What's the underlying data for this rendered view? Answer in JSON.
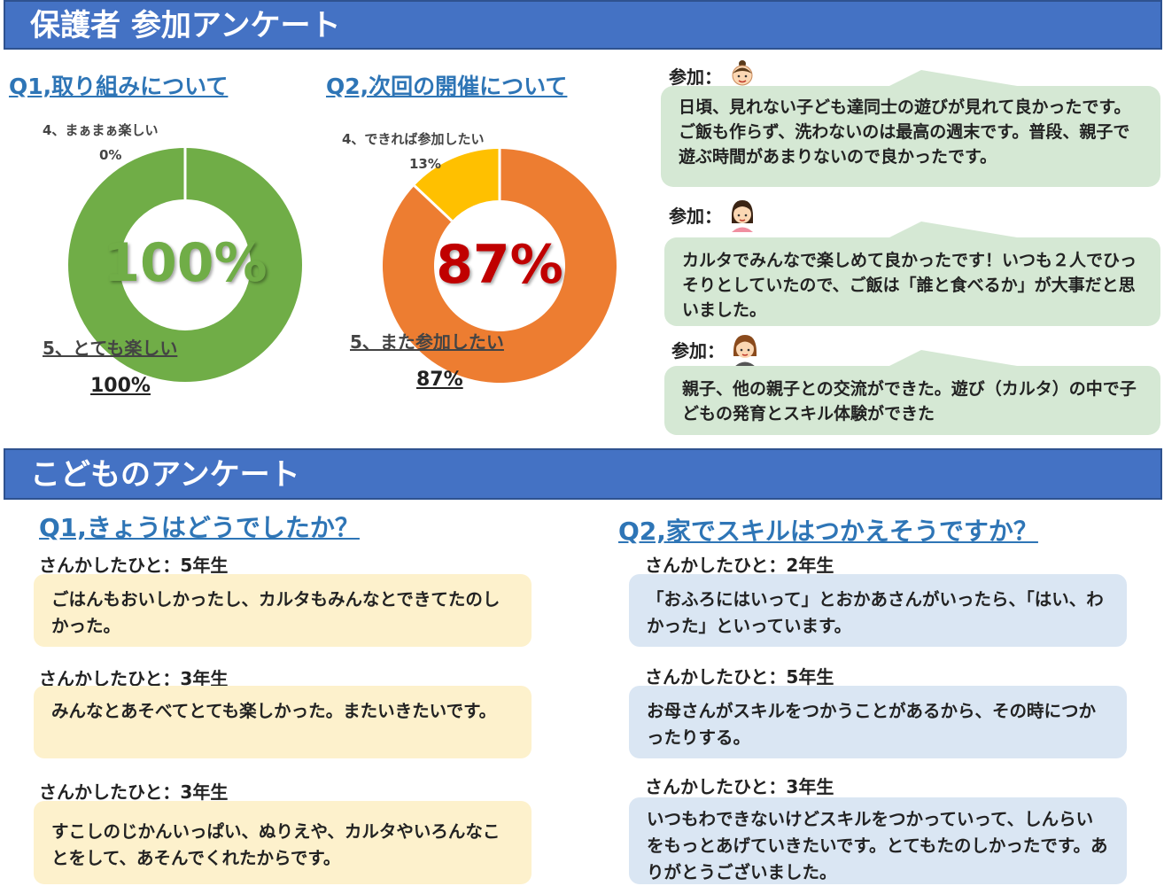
{
  "sections": {
    "parents_title": "保護者 参加アンケート",
    "kids_title": "こどものアンケート"
  },
  "parents": {
    "q1": {
      "title": "Q1,取り組みについて",
      "small_label": "4、まぁまぁ楽しい",
      "small_pct": "0%",
      "big_label": "5、とても楽しい",
      "big_pct": "100%",
      "center": "100%"
    },
    "q2": {
      "title": "Q2,次回の開催について",
      "small_label": "4、できれば参加したい",
      "small_pct": "13%",
      "big_label": "5、また参加したい",
      "big_pct": "87%",
      "center": "87%"
    },
    "comments": [
      {
        "speaker": "参加：",
        "icon": "man-face-icon",
        "text": "日頃、見れない子ども達同士の遊びが見れて良かったです。ご飯も作らず、洗わないのは最高の週末です。普段、親子で遊ぶ時間があまりないので良かったです。"
      },
      {
        "speaker": "参加：",
        "icon": "woman-face-icon",
        "text": "カルタでみんなで楽しめて良かったです！いつも２人でひっそりとしていたので、ご飯は「誰と食べるか」が大事だと思いました。"
      },
      {
        "speaker": "参加：",
        "icon": "woman-face-icon",
        "text": "親子、他の親子との交流ができた。遊び（カルタ）の中で子どもの発育とスキル体験ができた"
      }
    ]
  },
  "kids": {
    "q1": {
      "title": "Q1,きょうはどうでしたか？",
      "answers": [
        {
          "who": "さんかしたひと：5年生",
          "text": "ごはんもおいしかったし、カルタもみんなとできてたのしかった。"
        },
        {
          "who": "さんかしたひと：3年生",
          "text": "みんなとあそべてとても楽しかった。またいきたいです。"
        },
        {
          "who": "さんかしたひと：3年生",
          "text": "すこしのじかんいっぱい、ぬりえや、カルタやいろんなことをして、あそんでくれたからです。"
        }
      ]
    },
    "q2": {
      "title": "Q2,家でスキルはつかえそうですか？",
      "answers": [
        {
          "who": "さんかしたひと：2年生",
          "text": "「おふろにはいって」とおかあさんがいったら、「はい、わかった」といっています。"
        },
        {
          "who": "さんかしたひと：5年生",
          "text": "お母さんがスキルをつかうことがあるから、その時につかったりする。"
        },
        {
          "who": "さんかしたひと：3年生",
          "text": "いつもわできないけどスキルをつかっていって、しんらいをもっとあげていきたいです。とてもたのしかったです。ありがとうございました。"
        }
      ]
    }
  },
  "chart_data": [
    {
      "type": "pie",
      "title": "Q1,取り組みについて",
      "categories": [
        "5、とても楽しい",
        "4、まぁまぁ楽しい"
      ],
      "values": [
        100,
        0
      ],
      "colors": [
        "#70ad47",
        "#ffc000"
      ],
      "center_color": "#70ad47"
    },
    {
      "type": "pie",
      "title": "Q2,次回の開催について",
      "categories": [
        "5、また参加したい",
        "4、できれば参加したい"
      ],
      "values": [
        87,
        13
      ],
      "colors": [
        "#ed7d31",
        "#ffc000"
      ],
      "center_color": "#c00000"
    }
  ]
}
